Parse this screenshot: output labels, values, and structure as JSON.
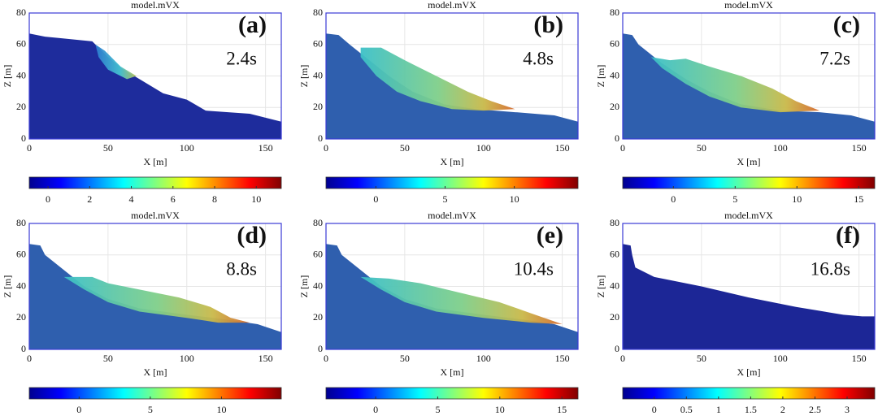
{
  "chart_data": [
    {
      "type": "field",
      "title": "model.mVX",
      "label": "(a)",
      "time": "2.4s",
      "xlabel": "X [m]",
      "ylabel": "Z [m]",
      "xlim": [
        0,
        160
      ],
      "ylim": [
        0,
        80
      ],
      "xticks": [
        0,
        50,
        100,
        150
      ],
      "yticks": [
        0,
        20,
        40,
        60,
        80
      ],
      "colorbar": {
        "lim": [
          -0.9,
          11.2
        ],
        "ticks": [
          0,
          2,
          4,
          6,
          8,
          10
        ]
      }
    },
    {
      "type": "field",
      "title": "model.mVX",
      "label": "(b)",
      "time": "4.8s",
      "xlabel": "X [m]",
      "ylabel": "Z [m]",
      "xlim": [
        0,
        160
      ],
      "ylim": [
        0,
        80
      ],
      "xticks": [
        0,
        50,
        100,
        150
      ],
      "yticks": [
        0,
        20,
        40,
        60,
        80
      ],
      "colorbar": {
        "lim": [
          -3.6,
          14.6
        ],
        "ticks": [
          0,
          5,
          10
        ]
      }
    },
    {
      "type": "field",
      "title": "model.mVX",
      "label": "(c)",
      "time": "7.2s",
      "xlabel": "X [m]",
      "ylabel": "Z [m]",
      "xlim": [
        0,
        160
      ],
      "ylim": [
        0,
        80
      ],
      "xticks": [
        0,
        50,
        100,
        150
      ],
      "yticks": [
        0,
        20,
        40,
        60,
        80
      ],
      "colorbar": {
        "lim": [
          -4.1,
          16.3
        ],
        "ticks": [
          0,
          5,
          10,
          15
        ]
      }
    },
    {
      "type": "field",
      "title": "model.mVX",
      "label": "(d)",
      "time": "8.8s",
      "xlabel": "X [m]",
      "ylabel": "Z [m]",
      "xlim": [
        0,
        160
      ],
      "ylim": [
        0,
        80
      ],
      "xticks": [
        0,
        50,
        100,
        150
      ],
      "yticks": [
        0,
        20,
        40,
        60,
        80
      ],
      "colorbar": {
        "lim": [
          -3.5,
          14.2
        ],
        "ticks": [
          0,
          5,
          10
        ]
      }
    },
    {
      "type": "field",
      "title": "model.mVX",
      "label": "(e)",
      "time": "10.4s",
      "xlabel": "X [m]",
      "ylabel": "Z [m]",
      "xlim": [
        0,
        160
      ],
      "ylim": [
        0,
        80
      ],
      "xticks": [
        0,
        50,
        100,
        150
      ],
      "yticks": [
        0,
        20,
        40,
        60,
        80
      ],
      "colorbar": {
        "lim": [
          -4.0,
          16.3
        ],
        "ticks": [
          0,
          5,
          10,
          15
        ]
      }
    },
    {
      "type": "field",
      "title": "model.mVX",
      "label": "(f)",
      "time": "16.8s",
      "xlabel": "X [m]",
      "ylabel": "Z [m]",
      "xlim": [
        0,
        160
      ],
      "ylim": [
        0,
        80
      ],
      "xticks": [
        0,
        50,
        100,
        150
      ],
      "yticks": [
        0,
        20,
        40,
        60,
        80
      ],
      "colorbar": {
        "lim": [
          -0.49,
          3.43
        ],
        "ticks": [
          0,
          0.5,
          1,
          1.5,
          2,
          2.5,
          3
        ]
      }
    }
  ]
}
